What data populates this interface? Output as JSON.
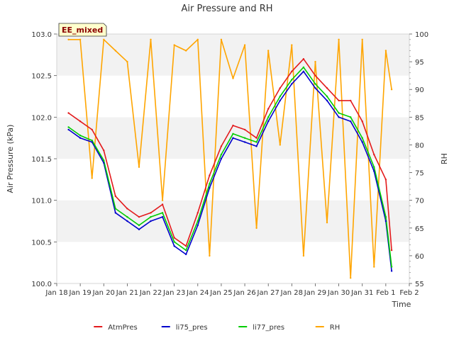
{
  "chart_data": {
    "type": "line",
    "title": "Air Pressure and RH",
    "site_badge": "EE_mixed",
    "xlabel": "Time",
    "ylabel": "Air Pressure (kPa)",
    "y2label": "RH",
    "x_ticks": [
      "Jan 18",
      "Jan 19",
      "Jan 20",
      "Jan 21",
      "Jan 22",
      "Jan 23",
      "Jan 24",
      "Jan 25",
      "Jan 26",
      "Jan 27",
      "Jan 28",
      "Jan 29",
      "Jan 30",
      "Jan 31",
      "Feb 1",
      "Feb 2"
    ],
    "xlim": [
      "Jan 18",
      "Feb 2"
    ],
    "ylim": [
      100.0,
      103.0
    ],
    "y_ticks": [
      100.0,
      100.5,
      101.0,
      101.5,
      102.0,
      102.5,
      103.0
    ],
    "y2lim": [
      55,
      100
    ],
    "y2_ticks": [
      55,
      60,
      65,
      70,
      75,
      80,
      85,
      90,
      95,
      100
    ],
    "grid": "horizontal alternating bands",
    "legend_position": "bottom",
    "x": [
      "Jan 18 12:00",
      "Jan 19 00:00",
      "Jan 19 12:00",
      "Jan 20 00:00",
      "Jan 20 12:00",
      "Jan 21 00:00",
      "Jan 21 12:00",
      "Jan 22 00:00",
      "Jan 22 12:00",
      "Jan 23 00:00",
      "Jan 23 12:00",
      "Jan 24 00:00",
      "Jan 24 12:00",
      "Jan 25 00:00",
      "Jan 25 12:00",
      "Jan 26 00:00",
      "Jan 26 12:00",
      "Jan 27 00:00",
      "Jan 27 12:00",
      "Jan 28 00:00",
      "Jan 28 12:00",
      "Jan 29 00:00",
      "Jan 29 12:00",
      "Jan 30 00:00",
      "Jan 30 12:00",
      "Jan 31 00:00",
      "Jan 31 12:00",
      "Feb 1 00:00",
      "Feb 1 06:00"
    ],
    "series": [
      {
        "name": "AtmPres",
        "axis": "left",
        "color": "#e31a1c",
        "values": [
          102.05,
          101.95,
          101.85,
          101.6,
          101.05,
          100.9,
          100.8,
          100.85,
          100.95,
          100.55,
          100.45,
          100.85,
          101.3,
          101.65,
          101.9,
          101.85,
          101.75,
          102.1,
          102.35,
          102.55,
          102.7,
          102.5,
          102.35,
          102.2,
          102.2,
          101.95,
          101.55,
          101.25,
          100.4
        ]
      },
      {
        "name": "li75_pres",
        "axis": "left",
        "color": "#0000cc",
        "values": [
          101.85,
          101.75,
          101.7,
          101.45,
          100.85,
          100.75,
          100.65,
          100.75,
          100.8,
          100.45,
          100.35,
          100.7,
          101.15,
          101.5,
          101.75,
          101.7,
          101.65,
          101.95,
          102.2,
          102.4,
          102.55,
          102.35,
          102.2,
          102.0,
          101.95,
          101.7,
          101.35,
          100.75,
          100.15
        ]
      },
      {
        "name": "li77_pres",
        "axis": "left",
        "color": "#00cc00",
        "values": [
          101.88,
          101.78,
          101.72,
          101.48,
          100.9,
          100.8,
          100.7,
          100.8,
          100.85,
          100.5,
          100.4,
          100.75,
          101.2,
          101.55,
          101.8,
          101.75,
          101.7,
          102.0,
          102.25,
          102.45,
          102.6,
          102.4,
          102.25,
          102.05,
          102.0,
          101.75,
          101.4,
          100.8,
          100.2
        ]
      },
      {
        "name": "RH",
        "axis": "right",
        "color": "#ffa500",
        "values": [
          99,
          99,
          74,
          99,
          97,
          95,
          76,
          99,
          70,
          98,
          97,
          99,
          60,
          99,
          92,
          98,
          65,
          97,
          80,
          98,
          60,
          95,
          66,
          99,
          56,
          99,
          58,
          97,
          90
        ]
      }
    ]
  }
}
